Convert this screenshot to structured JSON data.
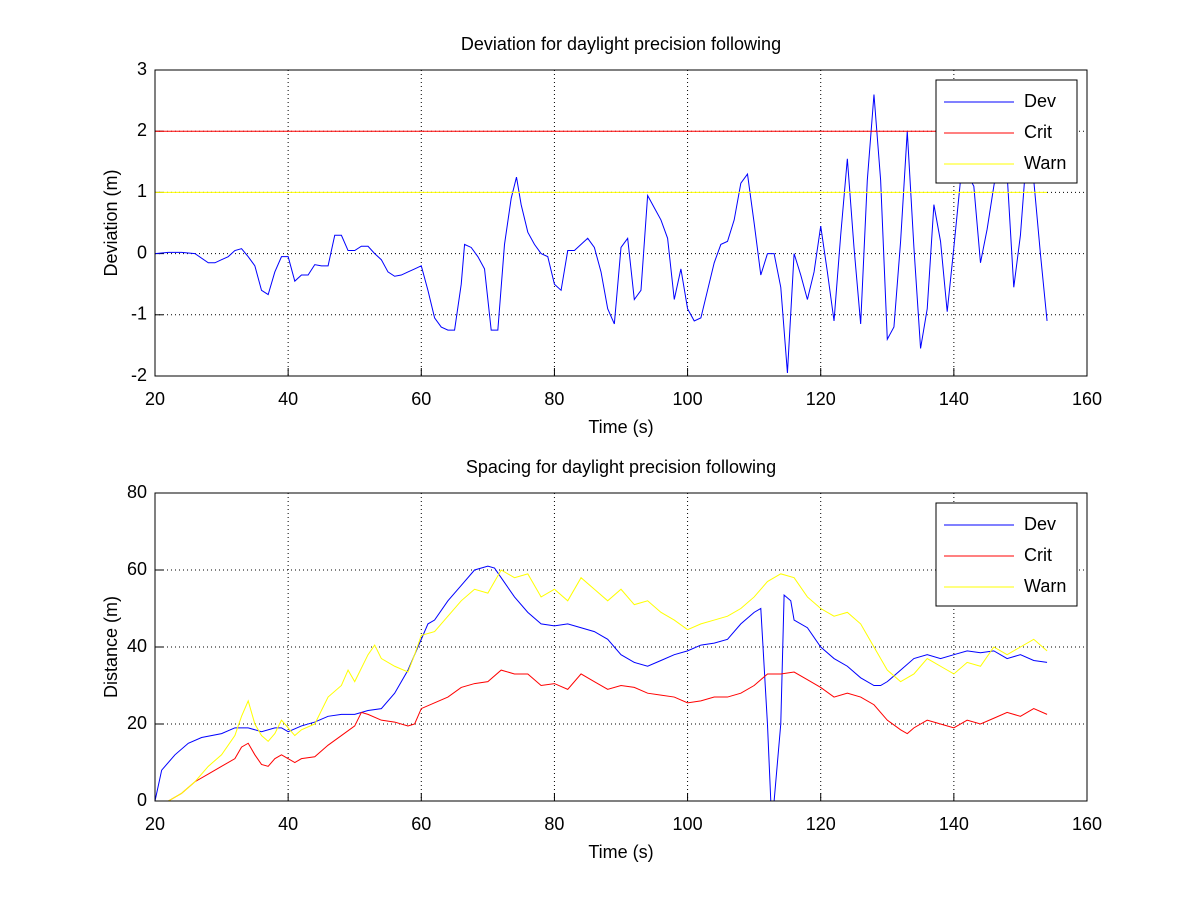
{
  "chart_data": [
    {
      "type": "line",
      "title": "Deviation for daylight precision following",
      "x_label": "Time (s)",
      "y_label": "Deviation (m)",
      "xlim": [
        20,
        160
      ],
      "ylim": [
        -2,
        3
      ],
      "xticks": [
        20,
        40,
        60,
        80,
        100,
        120,
        140,
        160
      ],
      "yticks": [
        -2,
        -1,
        0,
        1,
        2,
        3
      ],
      "grid": true,
      "legend": "northeast",
      "series": [
        {
          "name": "Dev",
          "color": "#0000ff",
          "x": [
            20,
            22,
            24,
            26,
            28,
            29,
            30,
            31,
            32,
            33,
            34,
            35,
            36,
            37,
            38,
            39,
            40,
            41,
            42,
            43,
            44,
            45,
            46,
            47,
            48,
            49,
            50,
            51,
            52,
            53,
            54,
            55,
            56,
            57,
            58,
            59,
            60,
            61,
            62,
            63,
            64,
            65,
            66,
            66.5,
            67.5,
            68.5,
            69.5,
            70.5,
            71.5,
            72.5,
            73.5,
            74.3,
            75,
            76,
            77,
            78,
            79,
            80,
            81,
            82,
            83,
            84,
            85,
            86,
            87,
            88,
            89,
            90,
            91,
            92,
            93,
            94,
            95,
            96,
            97,
            98,
            99,
            100,
            101,
            102,
            103,
            104,
            105,
            106,
            107,
            108,
            109,
            110,
            111,
            112,
            113,
            114,
            115,
            116,
            117,
            118,
            119,
            120,
            121,
            122,
            123,
            124,
            125,
            126,
            127,
            128,
            129,
            130,
            131,
            132,
            133,
            134,
            135,
            136,
            137,
            138,
            139,
            140,
            141,
            142,
            143,
            144,
            145,
            146,
            147,
            148,
            149,
            150,
            151,
            152,
            153,
            154
          ],
          "values": [
            0,
            0.02,
            0.02,
            0,
            -0.15,
            -0.15,
            -0.1,
            -0.05,
            0.05,
            0.08,
            -0.05,
            -0.2,
            -0.6,
            -0.67,
            -0.3,
            -0.05,
            -0.05,
            -0.45,
            -0.35,
            -0.35,
            -0.18,
            -0.2,
            -0.2,
            0.3,
            0.3,
            0.05,
            0.05,
            0.12,
            0.12,
            0,
            -0.1,
            -0.3,
            -0.37,
            -0.35,
            -0.3,
            -0.25,
            -0.2,
            -0.6,
            -1.05,
            -1.2,
            -1.25,
            -1.25,
            -0.5,
            0.15,
            0.1,
            -0.05,
            -0.25,
            -1.25,
            -1.25,
            0.15,
            0.9,
            1.25,
            0.8,
            0.35,
            0.15,
            0,
            -0.05,
            -0.5,
            -0.6,
            0.05,
            0.05,
            0.15,
            0.25,
            0.1,
            -0.3,
            -0.9,
            -1.15,
            0.1,
            0.25,
            -0.75,
            -0.6,
            0.95,
            0.75,
            0.55,
            0.25,
            -0.75,
            -0.25,
            -0.9,
            -1.1,
            -1.05,
            -0.6,
            -0.15,
            0.15,
            0.2,
            0.55,
            1.15,
            1.3,
            0.5,
            -0.35,
            0,
            0,
            -0.55,
            -1.95,
            0,
            -0.35,
            -0.75,
            -0.3,
            0.45,
            -0.3,
            -1.1,
            0.3,
            1.55,
            0.1,
            -1.15,
            1.2,
            2.6,
            1.2,
            -1.4,
            -1.2,
            0.2,
            2,
            0.1,
            -1.55,
            -0.9,
            0.8,
            0.2,
            -0.95,
            0.1,
            1.2,
            1.3,
            1.1,
            -0.15,
            0.4,
            1.1,
            1.7,
            1.3,
            -0.55,
            0.3,
            1.75,
            1.2,
            0,
            -1.1
          ]
        },
        {
          "name": "Crit",
          "color": "#ff0000",
          "x": [
            20,
            154
          ],
          "values": [
            2,
            2
          ]
        },
        {
          "name": "Warn",
          "color": "#ffff00",
          "x": [
            20,
            154
          ],
          "values": [
            1,
            1
          ]
        }
      ]
    },
    {
      "type": "line",
      "title": "Spacing for daylight precision following",
      "x_label": "Time (s)",
      "y_label": "Distance (m)",
      "xlim": [
        20,
        160
      ],
      "ylim": [
        0,
        80
      ],
      "xticks": [
        20,
        40,
        60,
        80,
        100,
        120,
        140,
        160
      ],
      "yticks": [
        0,
        20,
        40,
        60,
        80
      ],
      "grid": true,
      "legend": "northeast",
      "series": [
        {
          "name": "Dev",
          "color": "#0000ff",
          "x": [
            20,
            21,
            23,
            25,
            27,
            30,
            32,
            34,
            36,
            38,
            39,
            40,
            42,
            44,
            46,
            48,
            50,
            52,
            54,
            56,
            58,
            60,
            61,
            62,
            64,
            66,
            68,
            70,
            71,
            72,
            74,
            76,
            78,
            80,
            82,
            84,
            86,
            88,
            90,
            92,
            94,
            96,
            98,
            100,
            102,
            104,
            106,
            108,
            110,
            111,
            112,
            112.5,
            113,
            114,
            114.5,
            115.5,
            116,
            118,
            120,
            122,
            124,
            126,
            128,
            129,
            130,
            132,
            134,
            136,
            138,
            140,
            142,
            144,
            146,
            148,
            150,
            152,
            154
          ],
          "values": [
            0,
            8,
            12,
            15,
            16.5,
            17.5,
            19,
            19,
            18,
            19,
            19,
            18,
            19.5,
            20.5,
            22,
            22.5,
            22.5,
            23.5,
            24,
            28,
            34,
            42,
            46,
            47,
            52,
            56,
            60,
            61,
            60.5,
            58,
            53,
            49,
            46,
            45.5,
            46,
            45,
            44,
            42,
            38,
            36,
            35,
            36.5,
            38,
            39,
            40.5,
            41,
            42,
            46,
            49,
            50,
            20,
            0,
            0,
            20,
            53.5,
            52,
            47,
            45,
            40,
            37,
            35,
            32,
            30,
            30,
            31,
            34,
            37,
            38,
            37,
            38,
            39,
            38.5,
            39,
            37,
            38,
            36.5,
            36
          ]
        },
        {
          "name": "Crit",
          "color": "#ff0000",
          "x": [
            20,
            22,
            24,
            26,
            28,
            30,
            32,
            33,
            34,
            35,
            36,
            37,
            38,
            39,
            40,
            41,
            42,
            44,
            46,
            48,
            50,
            51,
            52,
            54,
            56,
            58,
            59,
            60,
            62,
            64,
            66,
            68,
            70,
            72,
            74,
            76,
            78,
            80,
            82,
            84,
            86,
            88,
            90,
            92,
            94,
            96,
            98,
            100,
            102,
            104,
            106,
            108,
            110,
            112,
            114,
            116,
            118,
            120,
            122,
            124,
            126,
            128,
            130,
            132,
            133,
            134,
            136,
            138,
            140,
            142,
            144,
            146,
            148,
            150,
            152,
            154
          ],
          "values": [
            0,
            0,
            2,
            5,
            7,
            9,
            11,
            14,
            15,
            12,
            9.5,
            9,
            11,
            12,
            11,
            10,
            11,
            11.5,
            14.5,
            17,
            19.5,
            23,
            22.5,
            21,
            20.5,
            19.5,
            20,
            24,
            25.5,
            27,
            29.5,
            30.5,
            31,
            34,
            33,
            33,
            30,
            30.5,
            29,
            33,
            31,
            29,
            30,
            29.5,
            28,
            27.5,
            27,
            25.5,
            26,
            27,
            27,
            28,
            30,
            33,
            33,
            33.5,
            31.5,
            29.5,
            27,
            28,
            27,
            25,
            21,
            18.5,
            17.5,
            19,
            21,
            20,
            19,
            21,
            20,
            21.5,
            23,
            22,
            24,
            22.5
          ]
        },
        {
          "name": "Warn",
          "color": "#ffff00",
          "x": [
            20,
            22,
            24,
            26,
            28,
            30,
            32,
            33,
            34,
            35,
            36,
            37,
            38,
            39,
            40,
            41,
            42,
            44,
            46,
            48,
            49,
            50,
            52,
            53,
            54,
            56,
            58,
            59,
            60,
            62,
            64,
            66,
            68,
            70,
            72,
            74,
            76,
            78,
            80,
            82,
            84,
            86,
            88,
            90,
            92,
            94,
            96,
            98,
            100,
            102,
            104,
            106,
            108,
            110,
            112,
            114,
            116,
            118,
            120,
            122,
            124,
            126,
            128,
            130,
            132,
            134,
            136,
            138,
            140,
            142,
            144,
            146,
            148,
            150,
            152,
            154
          ],
          "values": [
            0,
            0,
            2,
            5,
            9,
            12,
            17,
            22,
            26,
            20,
            17,
            15.5,
            17.5,
            21,
            19,
            17,
            18.5,
            20,
            27,
            30,
            34,
            31,
            38,
            40.5,
            37,
            35,
            33.5,
            38,
            43,
            44,
            48,
            52,
            55,
            54,
            60,
            58,
            59,
            53,
            55,
            52,
            58,
            55,
            52,
            55,
            51,
            52,
            49,
            47,
            44.5,
            46,
            47,
            48,
            50,
            53,
            57,
            59,
            58,
            53,
            50,
            48,
            49,
            46,
            40,
            34,
            31,
            33,
            37,
            35,
            33,
            36,
            35,
            40,
            38,
            40,
            42,
            39
          ]
        }
      ]
    }
  ]
}
